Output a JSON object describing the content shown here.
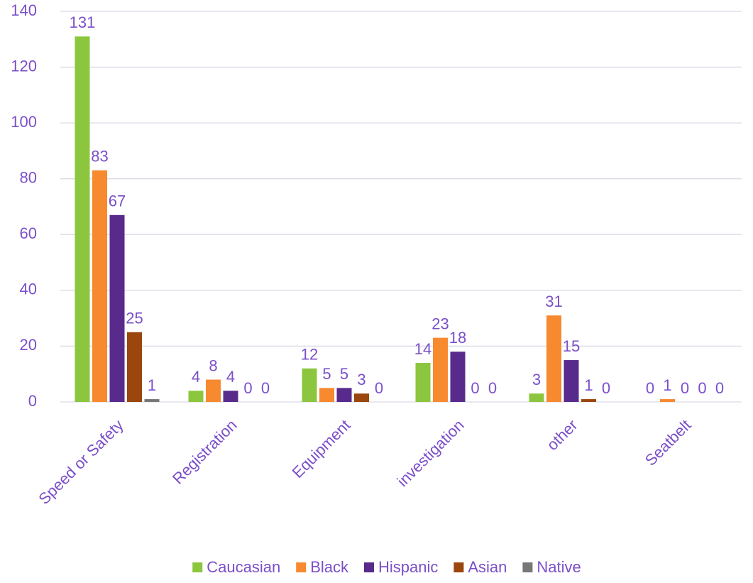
{
  "chart_data": {
    "type": "bar",
    "categories": [
      "Speed or Safety",
      "Registration",
      "Equipment",
      "investigation",
      "other",
      "Seatbelt"
    ],
    "series": [
      {
        "name": "Caucasian",
        "color": "#8cc63f",
        "values": [
          131,
          4,
          12,
          14,
          3,
          0
        ]
      },
      {
        "name": "Black",
        "color": "#f7892f",
        "values": [
          83,
          8,
          5,
          23,
          31,
          1
        ]
      },
      {
        "name": "Hispanic",
        "color": "#582a8c",
        "values": [
          67,
          4,
          5,
          18,
          15,
          0
        ]
      },
      {
        "name": "Asian",
        "color": "#9a460d",
        "values": [
          25,
          0,
          3,
          0,
          1,
          0
        ]
      },
      {
        "name": "Native",
        "color": "#777777",
        "values": [
          1,
          0,
          0,
          0,
          0,
          0
        ]
      }
    ],
    "ylim": [
      0,
      140
    ],
    "yticks": [
      0,
      20,
      40,
      60,
      80,
      100,
      120,
      140
    ],
    "grid": true,
    "legend": "bottom"
  }
}
